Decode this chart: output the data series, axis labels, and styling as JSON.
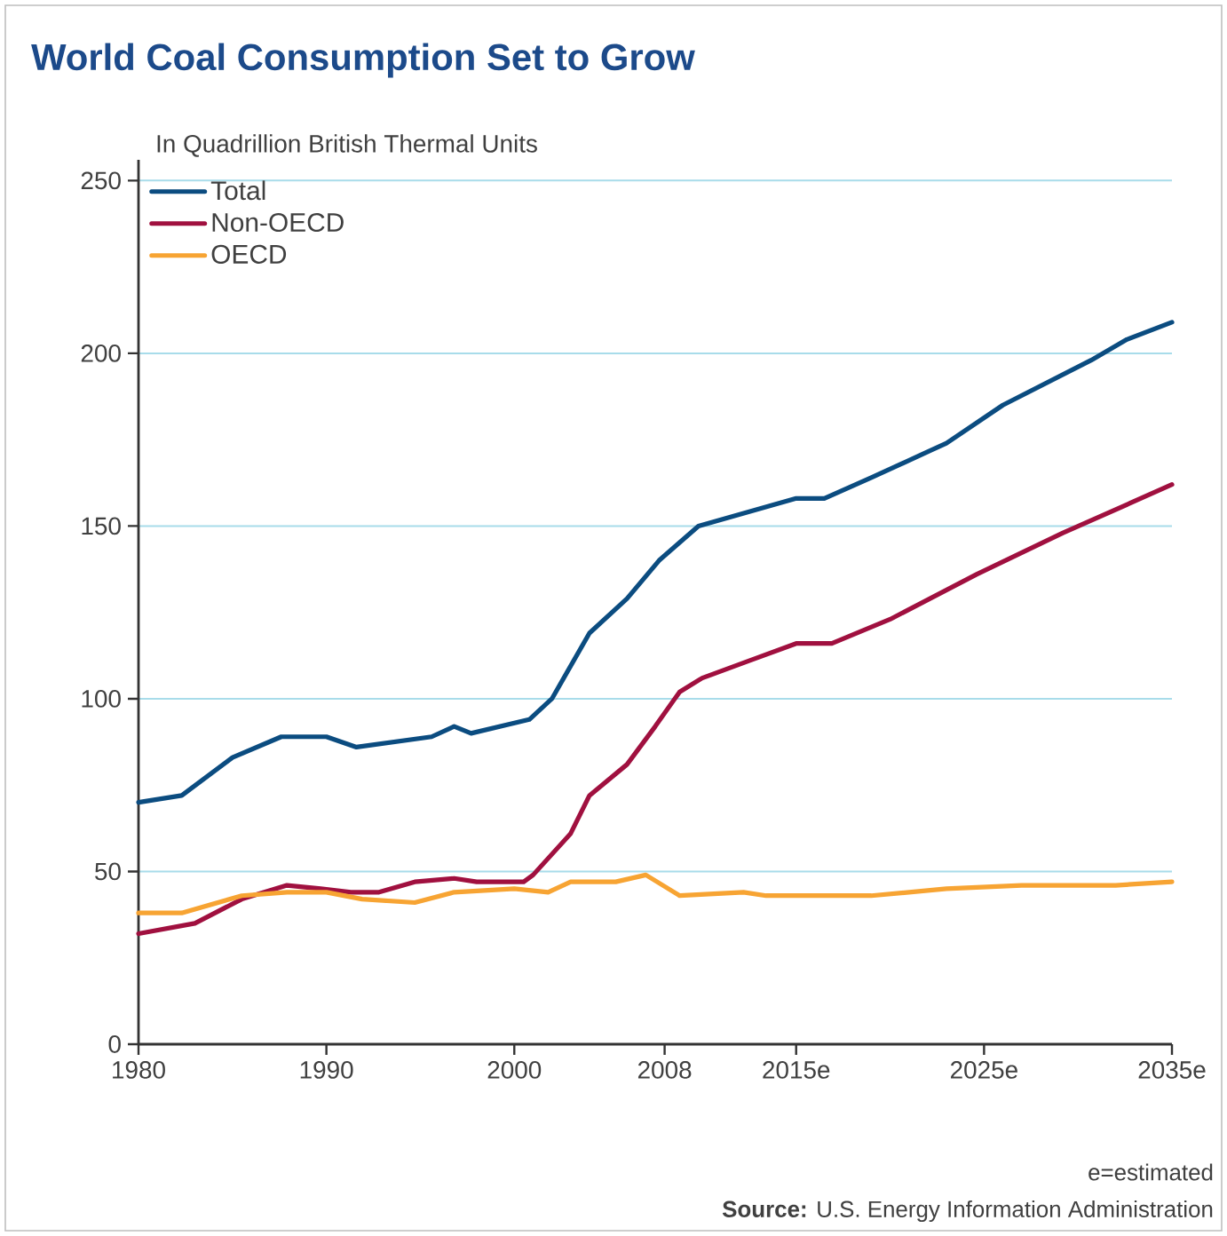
{
  "chart_data": {
    "type": "line",
    "title": "World Coal Consumption Set to Grow",
    "subtitle": "In Quadrillion British Thermal Units",
    "annotations": [
      "e=estimated",
      "**Source:** U.S. Energy Information Administration"
    ],
    "xlim": [
      1980,
      2035
    ],
    "ylim": [
      0,
      256
    ],
    "xticks": [
      1980,
      1990,
      2000,
      2008,
      {
        "value": 2015,
        "label": "2015e"
      },
      {
        "value": 2025,
        "label": "2025e"
      },
      {
        "value": 2035,
        "label": "2035e"
      }
    ],
    "yticks": [
      0,
      50,
      100,
      150,
      200,
      250
    ],
    "grid": "y",
    "legend": "top left",
    "line_style": "solid",
    "marker": "none",
    "series": [
      {
        "name": "Total",
        "color": "#0b4c80",
        "x": [
          1980,
          1982.3,
          1985,
          1987.6,
          1990,
          1991.6,
          1995.6,
          1996.8,
          1997.7,
          2000.8,
          2002,
          2004,
          2006,
          2007.7,
          2009.8,
          2015,
          2016.5,
          2019,
          2023,
          2026,
          2030.7,
          2032.6,
          2035
        ],
        "values": [
          70,
          72,
          83,
          89,
          89,
          86,
          89,
          92,
          90,
          94,
          100,
          119,
          129,
          140,
          150,
          158,
          158,
          164,
          174,
          185,
          198,
          204,
          209
        ]
      },
      {
        "name": "Non-OECD",
        "color": "#a0103f",
        "x": [
          1980,
          1983,
          1985.5,
          1987.9,
          1989.7,
          1991.3,
          1992.8,
          1994.7,
          1996.8,
          1998,
          2000.5,
          2001,
          2003,
          2004,
          2006,
          2007.5,
          2008.8,
          2010,
          2012.5,
          2015,
          2016.9,
          2020,
          2024.6,
          2029.2,
          2035
        ],
        "values": [
          32,
          35,
          42,
          46,
          45,
          44,
          44,
          47,
          48,
          47,
          47,
          49,
          61,
          72,
          81,
          92,
          102,
          106,
          111,
          116,
          116,
          123,
          136,
          148,
          162
        ]
      },
      {
        "name": "OECD",
        "color": "#f7a433",
        "x": [
          1980,
          1982.3,
          1985.5,
          1987.9,
          1990,
          1991.9,
          1994.7,
          1996.8,
          2000,
          2001.8,
          2003,
          2005.4,
          2007,
          2008.8,
          2012.2,
          2013.4,
          2019,
          2023,
          2027,
          2032,
          2035
        ],
        "values": [
          38,
          38,
          43,
          44,
          44,
          42,
          41,
          44,
          45,
          44,
          47,
          47,
          49,
          43,
          44,
          43,
          43,
          45,
          46,
          46,
          47
        ]
      }
    ]
  }
}
